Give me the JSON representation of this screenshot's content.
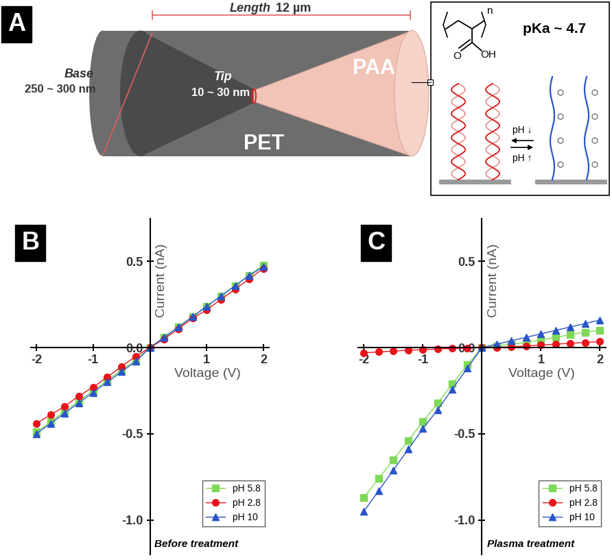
{
  "panel_labels": [
    "A",
    "B",
    "C"
  ],
  "diagram": {
    "length_label": "Length",
    "length_value": "12 µm",
    "base_label": "Base",
    "base_value": "250 ~ 300 nm",
    "tip_label": "Tip",
    "tip_value": "10 ~ 30 nm",
    "pet": "PET",
    "paa": "PAA",
    "pka": "pKa ~ 4.7",
    "repeat_index": "n",
    "oxygen": "O",
    "hydroxyl": "OH",
    "ph_down": "pH ↓",
    "ph_up": "pH ↑"
  },
  "chart_data": [
    {
      "type": "line",
      "annotation": "Before treatment",
      "xlabel": "Voltage (V)",
      "ylabel": "Current (nA)",
      "x": [
        -2,
        -1.75,
        -1.5,
        -1.25,
        -1,
        -0.75,
        -0.5,
        -0.25,
        0,
        0.25,
        0.5,
        0.75,
        1,
        1.25,
        1.5,
        1.75,
        2
      ],
      "xlim": [
        -2.1,
        2.1
      ],
      "xticks": [
        -2,
        -1,
        1,
        2
      ],
      "ylim": [
        -1.2,
        0.75
      ],
      "yticks": [
        -1.0,
        -0.5,
        0.0,
        0.5
      ],
      "legend": "lower right",
      "series": [
        {
          "name": "pH 5.8",
          "color": "#7ed957",
          "marker": "square",
          "values": [
            -0.49,
            -0.43,
            -0.37,
            -0.31,
            -0.25,
            -0.19,
            -0.13,
            -0.07,
            0.0,
            0.06,
            0.12,
            0.18,
            0.24,
            0.3,
            0.36,
            0.42,
            0.48
          ]
        },
        {
          "name": "pH 2.8",
          "color": "#e8141c",
          "marker": "circle",
          "values": [
            -0.44,
            -0.39,
            -0.34,
            -0.28,
            -0.23,
            -0.17,
            -0.11,
            -0.05,
            0.0,
            0.05,
            0.11,
            0.17,
            0.22,
            0.28,
            0.34,
            0.4,
            0.46
          ]
        },
        {
          "name": "pH 10",
          "color": "#2a55c8",
          "marker": "triangle",
          "values": [
            -0.5,
            -0.44,
            -0.38,
            -0.32,
            -0.26,
            -0.2,
            -0.14,
            -0.08,
            0.0,
            0.06,
            0.12,
            0.18,
            0.24,
            0.3,
            0.36,
            0.42,
            0.47
          ]
        }
      ]
    },
    {
      "type": "line",
      "annotation": "Plasma treatment",
      "xlabel": "Voltage (V)",
      "ylabel": "Current (nA)",
      "x": [
        -2,
        -1.75,
        -1.5,
        -1.25,
        -1,
        -0.75,
        -0.5,
        -0.25,
        0,
        0.25,
        0.5,
        0.75,
        1,
        1.25,
        1.5,
        1.75,
        2
      ],
      "xlim": [
        -2.1,
        2.1
      ],
      "xticks": [
        -2,
        -1,
        1,
        2
      ],
      "ylim": [
        -1.2,
        0.75
      ],
      "yticks": [
        -1.0,
        -0.5,
        0.0,
        0.5
      ],
      "legend": "lower right",
      "series": [
        {
          "name": "pH 5.8",
          "color": "#7ed957",
          "marker": "square",
          "values": [
            -0.87,
            -0.76,
            -0.65,
            -0.54,
            -0.43,
            -0.32,
            -0.21,
            -0.1,
            0.0,
            0.01,
            0.02,
            0.03,
            0.045,
            0.06,
            0.075,
            0.09,
            0.1
          ]
        },
        {
          "name": "pH 2.8",
          "color": "#e8141c",
          "marker": "circle",
          "values": [
            -0.03,
            -0.025,
            -0.02,
            -0.015,
            -0.012,
            -0.008,
            -0.005,
            -0.002,
            0.0,
            0.002,
            0.005,
            0.01,
            0.015,
            0.02,
            0.025,
            0.03,
            0.035
          ]
        },
        {
          "name": "pH 10",
          "color": "#2a55c8",
          "marker": "triangle",
          "values": [
            -0.95,
            -0.83,
            -0.71,
            -0.59,
            -0.47,
            -0.36,
            -0.24,
            -0.12,
            0.0,
            0.02,
            0.04,
            0.06,
            0.08,
            0.1,
            0.12,
            0.14,
            0.16
          ]
        }
      ]
    }
  ]
}
